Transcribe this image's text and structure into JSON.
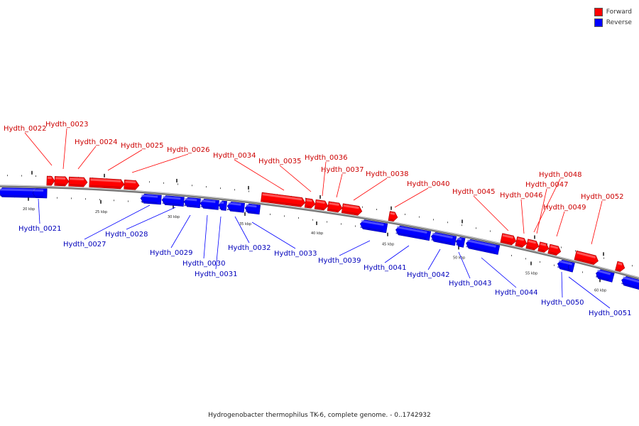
{
  "legend": {
    "forward_label": "Forward",
    "reverse_label": "Reverse",
    "forward_color": "#ff0000",
    "reverse_color": "#0000ff"
  },
  "caption": "Hydrogenobacter thermophilus TK-6, complete genome. - 0..1742932",
  "ticks": [
    "20 kbp",
    "25 kbp",
    "30 kbp",
    "35 kbp",
    "40 kbp",
    "45 kbp",
    "50 kbp",
    "55 kbp",
    "60 kbp"
  ],
  "genes": [
    {
      "id": "Hydth_0021",
      "strand": "reverse"
    },
    {
      "id": "Hydth_0022",
      "strand": "forward"
    },
    {
      "id": "Hydth_0023",
      "strand": "forward"
    },
    {
      "id": "Hydth_0024",
      "strand": "forward"
    },
    {
      "id": "Hydth_0025",
      "strand": "forward"
    },
    {
      "id": "Hydth_0026",
      "strand": "forward"
    },
    {
      "id": "Hydth_0027",
      "strand": "reverse"
    },
    {
      "id": "Hydth_0028",
      "strand": "reverse"
    },
    {
      "id": "Hydth_0029",
      "strand": "reverse"
    },
    {
      "id": "Hydth_0030",
      "strand": "reverse"
    },
    {
      "id": "Hydth_0031",
      "strand": "reverse"
    },
    {
      "id": "Hydth_0032",
      "strand": "reverse"
    },
    {
      "id": "Hydth_0033",
      "strand": "reverse"
    },
    {
      "id": "Hydth_0034",
      "strand": "forward"
    },
    {
      "id": "Hydth_0035",
      "strand": "forward"
    },
    {
      "id": "Hydth_0036",
      "strand": "forward"
    },
    {
      "id": "Hydth_0037",
      "strand": "forward"
    },
    {
      "id": "Hydth_0038",
      "strand": "forward"
    },
    {
      "id": "Hydth_0039",
      "strand": "reverse"
    },
    {
      "id": "Hydth_0040",
      "strand": "forward"
    },
    {
      "id": "Hydth_0041",
      "strand": "reverse"
    },
    {
      "id": "Hydth_0042",
      "strand": "reverse"
    },
    {
      "id": "Hydth_0043",
      "strand": "reverse"
    },
    {
      "id": "Hydth_0044",
      "strand": "reverse"
    },
    {
      "id": "Hydth_0045",
      "strand": "forward"
    },
    {
      "id": "Hydth_0046",
      "strand": "forward"
    },
    {
      "id": "Hydth_0047",
      "strand": "forward"
    },
    {
      "id": "Hydth_0048",
      "strand": "forward"
    },
    {
      "id": "Hydth_0049",
      "strand": "forward"
    },
    {
      "id": "Hydth_0050",
      "strand": "reverse"
    },
    {
      "id": "Hydth_0051",
      "strand": "reverse"
    },
    {
      "id": "Hydth_0052",
      "strand": "forward"
    }
  ]
}
